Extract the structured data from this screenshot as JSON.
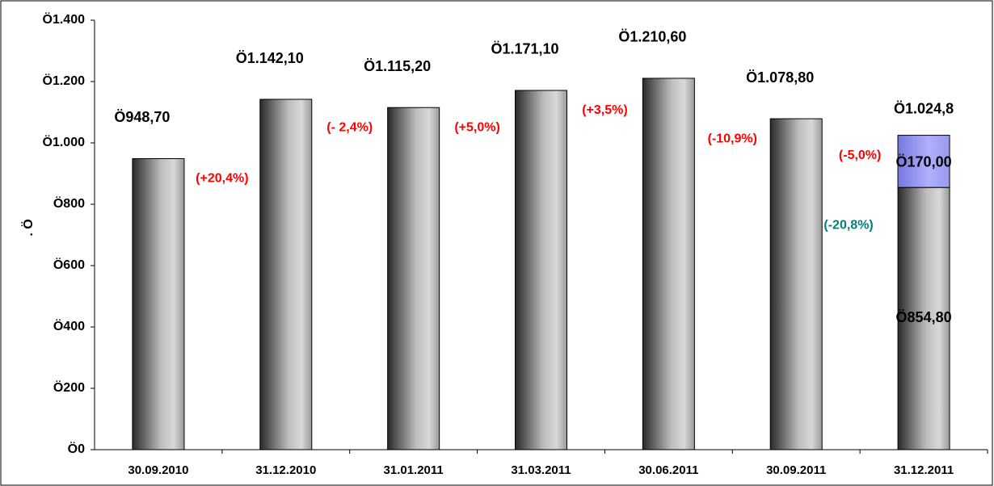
{
  "chart_data": {
    "type": "stacked_bar",
    "y_label": ". Ö",
    "categories": [
      "30.09.2010",
      "31.12.2010",
      "31.01.2011",
      "31.03.2011",
      "30.06.2011",
      "30.09.2011",
      "31.12.2011"
    ],
    "series": [
      {
        "color": "#8c8c8c",
        "values": [
          948.7,
          1142.1,
          1115.2,
          1171.1,
          1210.6,
          1078.8,
          854.8
        ],
        "value_labels": [
          "Ö948,70",
          "Ö1.142,10",
          "Ö1.115,20",
          "Ö1.171,10",
          "Ö1.210,60",
          "Ö1.078,80",
          "Ö854,80"
        ]
      },
      {
        "color": "#9999ff",
        "values": [
          null,
          null,
          null,
          null,
          null,
          null,
          170.0
        ],
        "value_labels": [
          null,
          null,
          null,
          null,
          null,
          null,
          "Ö170,00"
        ]
      }
    ],
    "total_label": "Ö1.024,8",
    "changes": [
      "(+20,4%)",
      "(- 2,4%)",
      "(+5,0%)",
      "(+3,5%)",
      "(-10,9%)",
      "(-5,0%)"
    ],
    "changes_color": "#ff0000",
    "last_change": "(-20,8%)",
    "last_change_color": "#008080",
    "ylim": [
      0,
      1400
    ],
    "yticks": [
      {
        "value": 0,
        "label": "Ö0"
      },
      {
        "value": 200,
        "label": "Ö200"
      },
      {
        "value": 400,
        "label": "Ö400"
      },
      {
        "value": 600,
        "label": "Ö600"
      },
      {
        "value": 800,
        "label": "Ö800"
      },
      {
        "value": 1000,
        "label": "Ö1.000"
      },
      {
        "value": 1200,
        "label": "Ö1.200"
      },
      {
        "value": 1400,
        "label": "Ö1.400"
      }
    ]
  }
}
